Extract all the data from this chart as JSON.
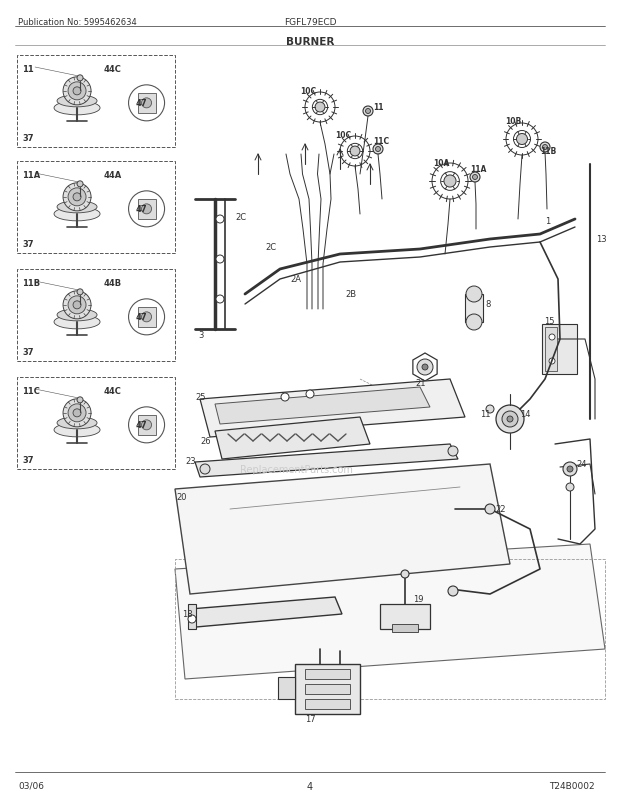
{
  "title_pub": "Publication No: 5995462634",
  "title_model": "FGFL79ECD",
  "title_section": "BURNER",
  "footer_date": "03/06",
  "footer_page": "4",
  "watermark": "ReplacementParts.com",
  "diagram_id": "T24B0002",
  "bg_color": "#ffffff",
  "line_color": "#333333",
  "text_color": "#333333",
  "gray_light": "#dddddd",
  "gray_mid": "#aaaaaa"
}
